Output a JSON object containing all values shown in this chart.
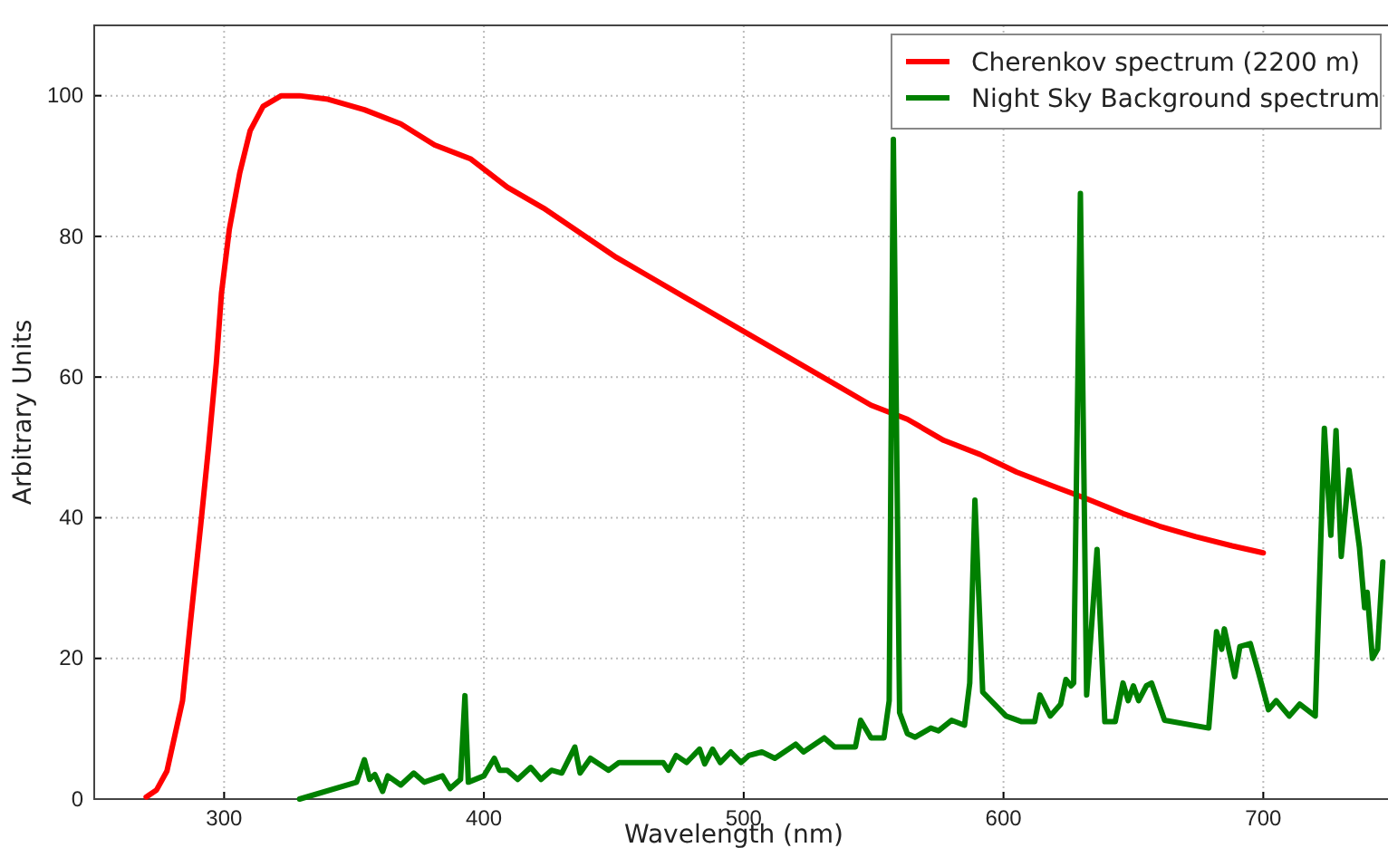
{
  "chart_data": {
    "type": "line",
    "xlabel": "Wavelength (nm)",
    "ylabel": "Arbitrary Units",
    "xlim": [
      250,
      748
    ],
    "ylim": [
      0,
      110
    ],
    "xticks": [
      300,
      400,
      500,
      600,
      700
    ],
    "yticks": [
      0,
      20,
      40,
      60,
      80,
      100
    ],
    "grid": true,
    "legend": "top right",
    "marker": "none",
    "line_style": "solid",
    "series": [
      {
        "name": "Cherenkov spectrum (2200 m)",
        "color": "#ff0000",
        "x": [
          270,
          274,
          278,
          284,
          287,
          291,
          294,
          297,
          299,
          302,
          306,
          310,
          315,
          322,
          329,
          340,
          354,
          368,
          381,
          395,
          409,
          423,
          437,
          451,
          465,
          479,
          493,
          507,
          521,
          535,
          549,
          563,
          577,
          591,
          605,
          619,
          632,
          646,
          660,
          674,
          688,
          700
        ],
        "values": [
          0.3,
          1.3,
          4,
          14,
          25,
          39,
          50,
          62,
          72,
          81,
          89,
          95,
          98.5,
          100,
          100,
          99.5,
          98,
          96,
          93,
          91,
          87,
          84,
          80.5,
          77,
          74,
          71,
          68,
          65,
          62,
          59,
          56,
          54,
          51,
          49,
          46.5,
          44.5,
          42.7,
          40.6,
          38.8,
          37.3,
          36,
          35
        ]
      },
      {
        "name": "Night Sky Background spectrum",
        "color": "#008000",
        "x": [
          329,
          351,
          354,
          356,
          358,
          361,
          363,
          368,
          373,
          377,
          384,
          387,
          391,
          392.7,
          394,
          400,
          404,
          406,
          409,
          413,
          418,
          422,
          426,
          430,
          435,
          437,
          441,
          448,
          452,
          469,
          471,
          474,
          478,
          483,
          485,
          488,
          491,
          495,
          499,
          502,
          507,
          512,
          520,
          523,
          531,
          535,
          543,
          545,
          549,
          554,
          556,
          557.6,
          560,
          563,
          566,
          572,
          575,
          580,
          585,
          587,
          589,
          592,
          601,
          607,
          612,
          614,
          618,
          622,
          624,
          626,
          627,
          629.6,
          632,
          636,
          639,
          643,
          646,
          648,
          650,
          652,
          655,
          657,
          662,
          679,
          682,
          684,
          685,
          689,
          691,
          695,
          698,
          702,
          705,
          710,
          714,
          720,
          723.5,
          726,
          728,
          730,
          733,
          737,
          739,
          740,
          742,
          744,
          746
        ],
        "values": [
          0,
          2.4,
          5.6,
          2.8,
          3.5,
          1.1,
          3.3,
          2,
          3.7,
          2.4,
          3.3,
          1.5,
          2.8,
          14.7,
          2.4,
          3.3,
          5.8,
          4.1,
          4.1,
          2.8,
          4.5,
          2.8,
          4.1,
          3.7,
          7.4,
          3.7,
          5.8,
          4.1,
          5.2,
          5.2,
          4.1,
          6.2,
          5.2,
          7.1,
          5,
          7.1,
          5.2,
          6.7,
          5.2,
          6.2,
          6.7,
          5.8,
          7.8,
          6.7,
          8.7,
          7.4,
          7.4,
          11.2,
          8.7,
          8.7,
          14,
          93.8,
          12.3,
          9.3,
          8.8,
          10.1,
          9.7,
          11.2,
          10.5,
          16.5,
          42.5,
          15.2,
          11.8,
          11,
          11,
          14.8,
          11.8,
          13.5,
          17,
          16.1,
          16.5,
          86.1,
          14.8,
          35.5,
          11,
          11,
          16.5,
          14,
          16.1,
          14,
          16.1,
          16.5,
          11.2,
          10.1,
          23.8,
          21.3,
          24.2,
          17.4,
          21.7,
          22.1,
          18.2,
          12.7,
          14,
          11.8,
          13.5,
          11.8,
          52.7,
          37.5,
          52.4,
          34.5,
          46.8,
          35.8,
          27.2,
          29.4,
          20,
          21.3,
          33.7
        ]
      }
    ]
  }
}
